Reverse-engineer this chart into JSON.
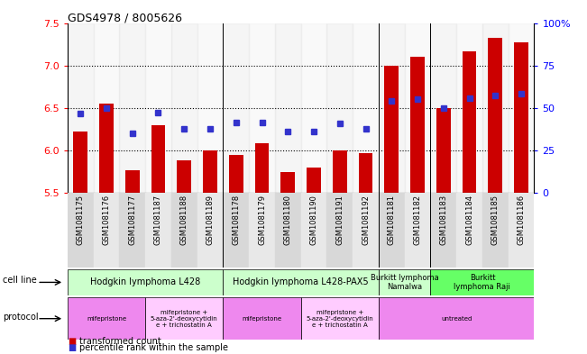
{
  "title": "GDS4978 / 8005626",
  "samples": [
    "GSM1081175",
    "GSM1081176",
    "GSM1081177",
    "GSM1081187",
    "GSM1081188",
    "GSM1081189",
    "GSM1081178",
    "GSM1081179",
    "GSM1081180",
    "GSM1081190",
    "GSM1081191",
    "GSM1081192",
    "GSM1081181",
    "GSM1081182",
    "GSM1081183",
    "GSM1081184",
    "GSM1081185",
    "GSM1081186"
  ],
  "bar_values": [
    6.22,
    6.55,
    5.77,
    6.3,
    5.88,
    6.0,
    5.95,
    6.08,
    5.75,
    5.8,
    6.0,
    5.97,
    7.0,
    7.1,
    6.5,
    7.17,
    7.33,
    7.27
  ],
  "dot_values": [
    6.43,
    6.5,
    6.2,
    6.45,
    6.25,
    6.25,
    6.33,
    6.33,
    6.22,
    6.22,
    6.32,
    6.25,
    6.58,
    6.6,
    6.5,
    6.62,
    6.65,
    6.67
  ],
  "ylim_left": [
    5.5,
    7.5
  ],
  "ylim_right": [
    0,
    100
  ],
  "yticks_left": [
    5.5,
    6.0,
    6.5,
    7.0,
    7.5
  ],
  "yticks_right": [
    0,
    25,
    50,
    75,
    100
  ],
  "ytick_labels_right": [
    "0",
    "25",
    "50",
    "75",
    "100%"
  ],
  "bar_color": "#cc0000",
  "dot_color": "#3333cc",
  "grid_lines": [
    6.0,
    6.5,
    7.0
  ],
  "cell_line_groups": [
    {
      "label": "Hodgkin lymphoma L428",
      "start": 0,
      "end": 6,
      "color": "#ccffcc"
    },
    {
      "label": "Hodgkin lymphoma L428-PAX5",
      "start": 6,
      "end": 12,
      "color": "#ccffcc"
    },
    {
      "label": "Burkitt lymphoma\nNamalwa",
      "start": 12,
      "end": 14,
      "color": "#ccffcc"
    },
    {
      "label": "Burkitt\nlymphoma Raji",
      "start": 14,
      "end": 18,
      "color": "#66ff66"
    }
  ],
  "protocol_groups": [
    {
      "label": "mifepristone",
      "start": 0,
      "end": 3,
      "color": "#ee88ee"
    },
    {
      "label": "mifepristone +\n5-aza-2'-deoxycytidin\ne + trichostatin A",
      "start": 3,
      "end": 6,
      "color": "#ffccff"
    },
    {
      "label": "mifepristone",
      "start": 6,
      "end": 9,
      "color": "#ee88ee"
    },
    {
      "label": "mifepristone +\n5-aza-2'-deoxycytidin\ne + trichostatin A",
      "start": 9,
      "end": 12,
      "color": "#ffccff"
    },
    {
      "label": "untreated",
      "start": 12,
      "end": 18,
      "color": "#ee88ee"
    }
  ],
  "group_separators": [
    5.5,
    11.5,
    13.5
  ],
  "legend_red_label": "transformed count",
  "legend_blue_label": "percentile rank within the sample",
  "cell_line_label": "cell line",
  "protocol_label": "protocol"
}
